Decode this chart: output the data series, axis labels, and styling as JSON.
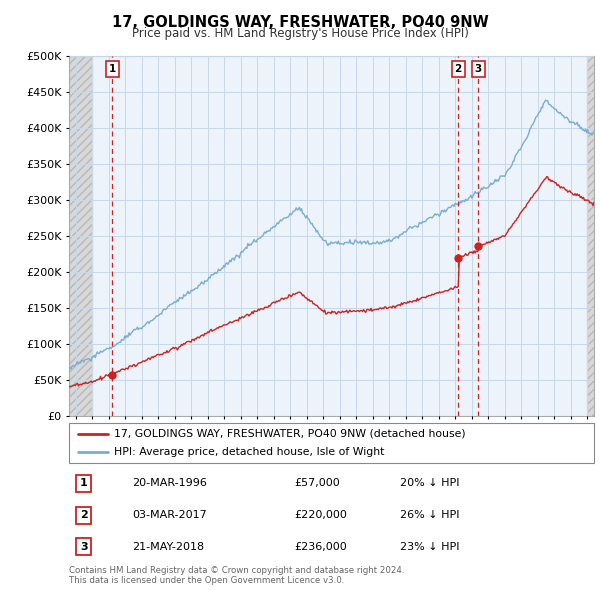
{
  "title": "17, GOLDINGS WAY, FRESHWATER, PO40 9NW",
  "subtitle": "Price paid vs. HM Land Registry's House Price Index (HPI)",
  "ylim": [
    0,
    500000
  ],
  "yticks": [
    0,
    50000,
    100000,
    150000,
    200000,
    250000,
    300000,
    350000,
    400000,
    450000,
    500000
  ],
  "xlim_start": 1993.6,
  "xlim_end": 2025.4,
  "sale_dates": [
    1996.22,
    2017.17,
    2018.39
  ],
  "sale_prices": [
    57000,
    220000,
    236000
  ],
  "sale_labels": [
    "1",
    "2",
    "3"
  ],
  "sale_info": [
    {
      "label": "1",
      "date": "20-MAR-1996",
      "price": "£57,000",
      "hpi": "20% ↓ HPI"
    },
    {
      "label": "2",
      "date": "03-MAR-2017",
      "price": "£220,000",
      "hpi": "26% ↓ HPI"
    },
    {
      "label": "3",
      "date": "21-MAY-2018",
      "price": "£236,000",
      "hpi": "23% ↓ HPI"
    }
  ],
  "legend_line1": "17, GOLDINGS WAY, FRESHWATER, PO40 9NW (detached house)",
  "legend_line2": "HPI: Average price, detached house, Isle of Wight",
  "footer": "Contains HM Land Registry data © Crown copyright and database right 2024.\nThis data is licensed under the Open Government Licence v3.0.",
  "hpi_line_color": "#7aadd4",
  "property_line_color": "#cc2222",
  "grid_color": "#c8d8e8",
  "background_chart": "#edf3fa",
  "hatch_bg": "#d8d8d8"
}
